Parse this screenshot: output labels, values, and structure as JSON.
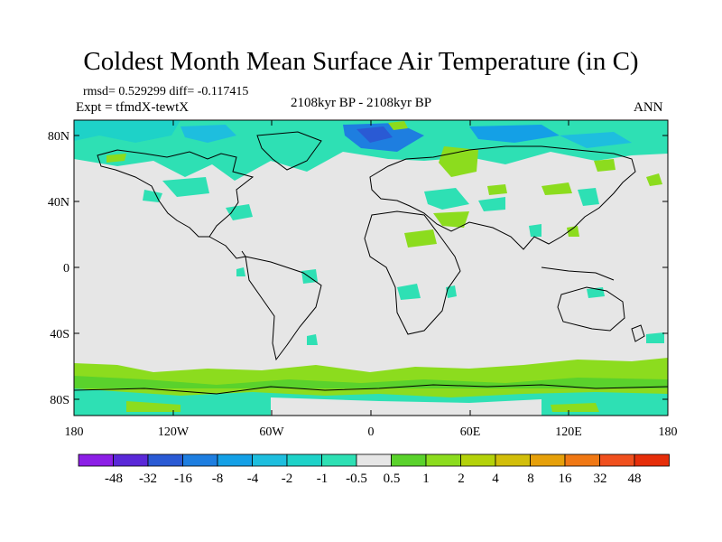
{
  "title": "Coldest Month Mean Surface Air Temperature (in C)",
  "stats_line": "rmsd= 0.529299 diff= -0.117415",
  "experiment": "Expt = tfmdX-tewtX",
  "period": "2108kyr BP - 2108kyr BP",
  "season": "ANN",
  "lat_ticks": [
    "80N",
    "40N",
    "0",
    "40S",
    "80S"
  ],
  "lon_ticks": [
    "180",
    "120W",
    "60W",
    "0",
    "60E",
    "120E",
    "180"
  ],
  "colorbar": {
    "labels": [
      "-48",
      "-32",
      "-16",
      "-8",
      "-4",
      "-2",
      "-1",
      "-0.5",
      "0.5",
      "1",
      "2",
      "4",
      "8",
      "16",
      "32",
      "48"
    ],
    "colors": [
      "#8c1fe6",
      "#5a28d8",
      "#2a5ad4",
      "#1e7ee0",
      "#14a0e6",
      "#1ebede",
      "#1ed2c8",
      "#2ee0b4",
      "#e6e6e6",
      "#5ad22c",
      "#8cdc1e",
      "#b4d20a",
      "#d2be0a",
      "#e6a00a",
      "#f07814",
      "#f0501e",
      "#e62e0a"
    ]
  },
  "colors": {
    "land_ocean_background": "#e6e6e6",
    "cool_anomaly": "#2ee0b4",
    "strong_cool_anomaly": "#1e7ee0",
    "warm_anomaly": "#8cdc1e"
  }
}
